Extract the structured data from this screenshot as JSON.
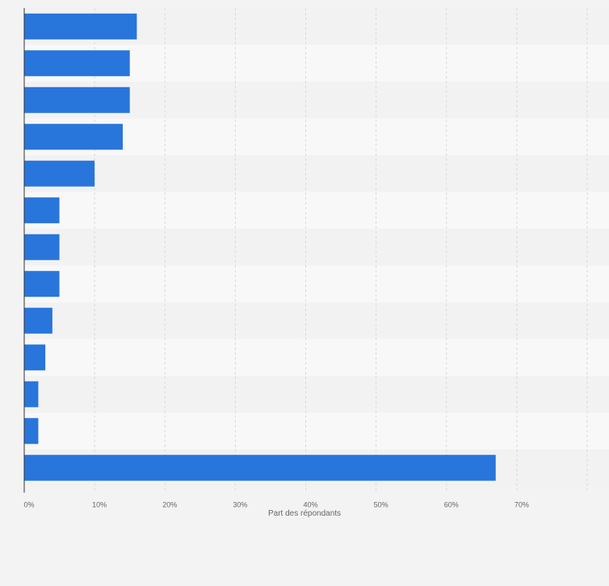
{
  "chart_data": {
    "type": "bar",
    "orientation": "horizontal",
    "categories": [
      "",
      "",
      "",
      "",
      "",
      "",
      "",
      "",
      "",
      "",
      "",
      "",
      ""
    ],
    "values": [
      16,
      15,
      15,
      14,
      10,
      5,
      5,
      5,
      4,
      3,
      2,
      2,
      67
    ],
    "xlabel": "Part des répondants",
    "ylabel": "",
    "xlim": [
      0,
      80
    ],
    "x_ticks": [
      "0%",
      "10%",
      "20%",
      "30%",
      "40%",
      "50%",
      "60%",
      "70%"
    ],
    "grid": true,
    "legend": "none",
    "colors": {
      "bar": "#2875dc",
      "band_light": "#f8f8f8",
      "band_dark": "#f2f2f2",
      "page_bg": "#f3f3f3",
      "grid": "#d9d9d9",
      "axis": "#333333",
      "tick_text": "#666666"
    }
  }
}
